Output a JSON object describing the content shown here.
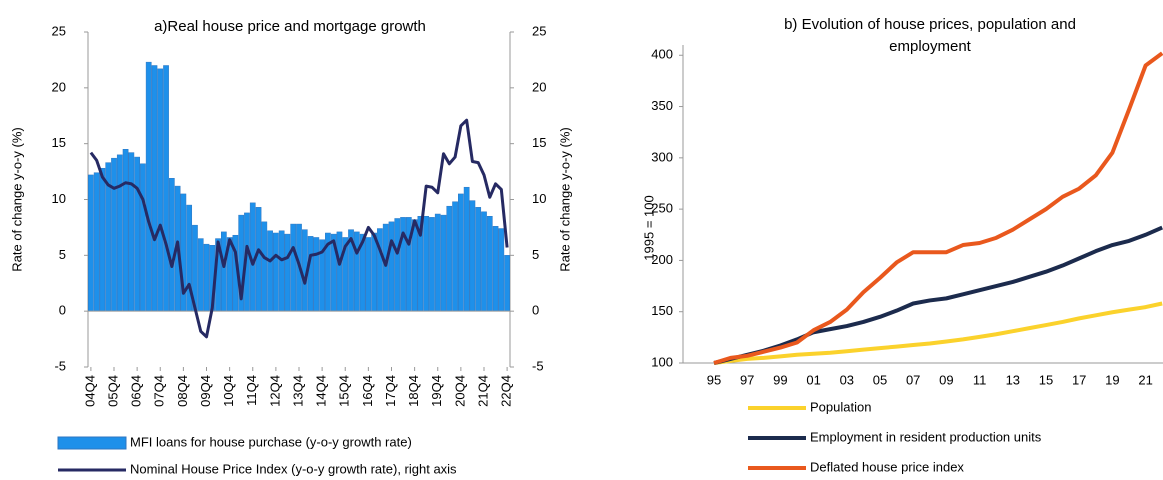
{
  "chart_data": [
    {
      "type": "bar",
      "title": "a)Real house price and mortgage growth",
      "y_label": "Rate of change y-o-y (%)",
      "y2_label": "Rate of change y-o-y (%)",
      "categories": [
        "04Q4",
        null,
        null,
        null,
        "05Q4",
        null,
        null,
        null,
        "06Q4",
        null,
        null,
        null,
        "07Q4",
        null,
        null,
        null,
        "08Q4",
        null,
        null,
        null,
        "09Q4",
        null,
        null,
        null,
        "10Q4",
        null,
        null,
        null,
        "11Q4",
        null,
        null,
        null,
        "12Q4",
        null,
        null,
        null,
        "13Q4",
        null,
        null,
        null,
        "14Q4",
        null,
        null,
        null,
        "15Q4",
        null,
        null,
        null,
        "16Q4",
        null,
        null,
        null,
        "17Q4",
        null,
        null,
        null,
        "18Q4",
        null,
        null,
        null,
        "19Q4",
        null,
        null,
        null,
        "20Q4",
        null,
        null,
        null,
        "21Q4",
        null,
        null,
        null,
        "22Q4"
      ],
      "series": [
        {
          "name": "MFI loans for house purchase (y-o-y growth rate)",
          "type": "bar",
          "color": "#1e90ea",
          "values": [
            12.2,
            12.4,
            12.8,
            13.3,
            13.7,
            14.0,
            14.5,
            14.2,
            13.8,
            13.2,
            22.3,
            22.0,
            21.7,
            22.0,
            11.9,
            11.2,
            10.5,
            9.5,
            7.7,
            6.5,
            6.0,
            5.9,
            6.5,
            7.1,
            6.6,
            6.8,
            8.6,
            8.8,
            9.7,
            9.3,
            8.0,
            7.2,
            7.0,
            7.2,
            6.9,
            7.8,
            7.8,
            7.3,
            6.7,
            6.6,
            6.4,
            7.0,
            6.9,
            7.1,
            6.6,
            7.3,
            7.1,
            6.9,
            6.6,
            7.0,
            7.4,
            7.8,
            8.0,
            8.3,
            8.4,
            8.4,
            8.2,
            8.5,
            8.5,
            8.4,
            8.7,
            8.6,
            9.4,
            9.8,
            10.5,
            11.1,
            9.9,
            9.3,
            8.9,
            8.5,
            7.6,
            7.4,
            5.0
          ]
        },
        {
          "name": "Nominal House Price Index (y-o-y growth rate), right axis",
          "type": "line",
          "axis": "y2",
          "color": "#262a63",
          "values": [
            14.2,
            13.5,
            12.0,
            11.3,
            11.0,
            11.2,
            11.5,
            11.4,
            11.0,
            10.0,
            8.0,
            6.4,
            7.7,
            6.0,
            4.0,
            6.2,
            1.6,
            2.4,
            0.3,
            -1.8,
            -2.3,
            0.3,
            6.2,
            4.0,
            6.4,
            5.3,
            1.1,
            5.8,
            4.2,
            5.5,
            4.8,
            4.5,
            5.0,
            4.6,
            4.8,
            5.7,
            4.2,
            2.5,
            5.0,
            5.1,
            5.3,
            6.0,
            6.3,
            4.2,
            5.8,
            6.5,
            5.2,
            6.2,
            7.5,
            6.8,
            5.5,
            4.1,
            6.3,
            5.2,
            7.0,
            6.0,
            8.1,
            6.8,
            11.2,
            11.1,
            10.6,
            14.1,
            13.2,
            13.8,
            16.6,
            17.1,
            13.4,
            13.3,
            12.2,
            10.2,
            11.4,
            10.9,
            5.7
          ]
        }
      ],
      "ylim": [
        -5,
        25
      ],
      "yticks": [
        -5,
        0,
        5,
        10,
        15,
        20,
        25
      ],
      "y2lim": [
        -5,
        25
      ],
      "y2ticks": [
        -5,
        0,
        5,
        10,
        15,
        20,
        25
      ],
      "legend": "bottom"
    },
    {
      "type": "line",
      "title": "b) Evolution of house prices, population and employment",
      "y_label": "1995 = 100",
      "categories": [
        "95",
        null,
        "97",
        null,
        "99",
        null,
        "01",
        null,
        "03",
        null,
        "05",
        null,
        "07",
        null,
        "09",
        null,
        "11",
        null,
        "13",
        null,
        "15",
        null,
        "17",
        null,
        "19",
        null,
        "21",
        null
      ],
      "series": [
        {
          "name": "Population",
          "color": "#fbd22c",
          "values": [
            100,
            102,
            104,
            105,
            106.5,
            108,
            109,
            110,
            111.5,
            113,
            114.5,
            116,
            117.5,
            119,
            121,
            123,
            125.5,
            128,
            131,
            134,
            137,
            140,
            143.5,
            146.5,
            149.5,
            152,
            154.5,
            158
          ]
        },
        {
          "name": "Employment in resident production units",
          "color": "#1c2b4d",
          "values": [
            100,
            104,
            108,
            112,
            117,
            123,
            130,
            133,
            136,
            140,
            145,
            151,
            158,
            161,
            163,
            167,
            171,
            175,
            179,
            184,
            189,
            195,
            202,
            209,
            215,
            219,
            225,
            232
          ]
        },
        {
          "name": "Deflated house price index",
          "color": "#e9581d",
          "values": [
            100,
            105,
            107,
            111,
            115,
            120,
            132,
            140,
            152,
            169,
            183,
            198,
            208,
            208,
            208,
            215,
            217,
            222,
            230,
            240,
            250,
            262,
            270,
            283,
            305,
            347,
            390,
            402
          ]
        }
      ],
      "ylim": [
        100,
        410
      ],
      "yticks": [
        100,
        150,
        200,
        250,
        300,
        350,
        400
      ],
      "legend": "bottom"
    }
  ]
}
